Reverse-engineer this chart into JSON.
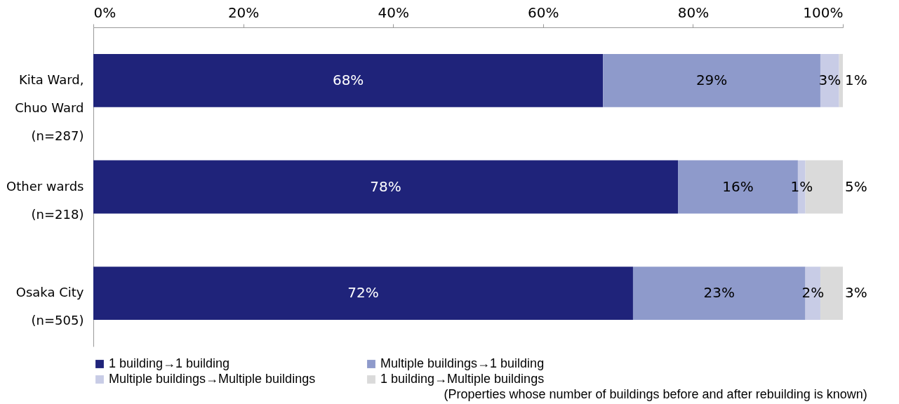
{
  "chart_data": {
    "type": "bar",
    "orientation": "horizontal",
    "stacked": true,
    "categories": [
      "Kita Ward,\nChuo Ward\n(n=287)",
      "Other wards\n(n=218)",
      "Osaka City\n(n=505)"
    ],
    "series": [
      {
        "name": "1 building→1 building",
        "color": "#1f237a",
        "values": [
          68,
          78,
          72
        ],
        "value_labels": [
          "68%",
          "78%",
          "72%"
        ]
      },
      {
        "name": "Multiple buildings→1 building",
        "color": "#8e9acb",
        "values": [
          29,
          16,
          23
        ],
        "value_labels": [
          "29%",
          "16%",
          "23%"
        ]
      },
      {
        "name": "Multiple buildings→Multiple buildings",
        "color": "#c8cce6",
        "values": [
          2.5,
          1,
          2
        ],
        "value_labels": [
          "3%",
          "1%",
          "2%"
        ]
      },
      {
        "name": "1 building→Multiple buildings",
        "color": "#dadada",
        "values": [
          0.5,
          5,
          3
        ],
        "value_labels": [
          "1%",
          "5%",
          "3%"
        ]
      }
    ],
    "xlim": [
      0,
      100
    ],
    "xticks": [
      {
        "value": 0,
        "label": "0%"
      },
      {
        "value": 20,
        "label": "20%"
      },
      {
        "value": 40,
        "label": "40%"
      },
      {
        "value": 60,
        "label": "60%"
      },
      {
        "value": 80,
        "label": "80%"
      },
      {
        "value": 100,
        "label": "100%"
      }
    ],
    "grid": false,
    "legend": "bottom",
    "annotations": [
      "(Properties whose number of buildings before and after rebuilding is known)"
    ]
  }
}
